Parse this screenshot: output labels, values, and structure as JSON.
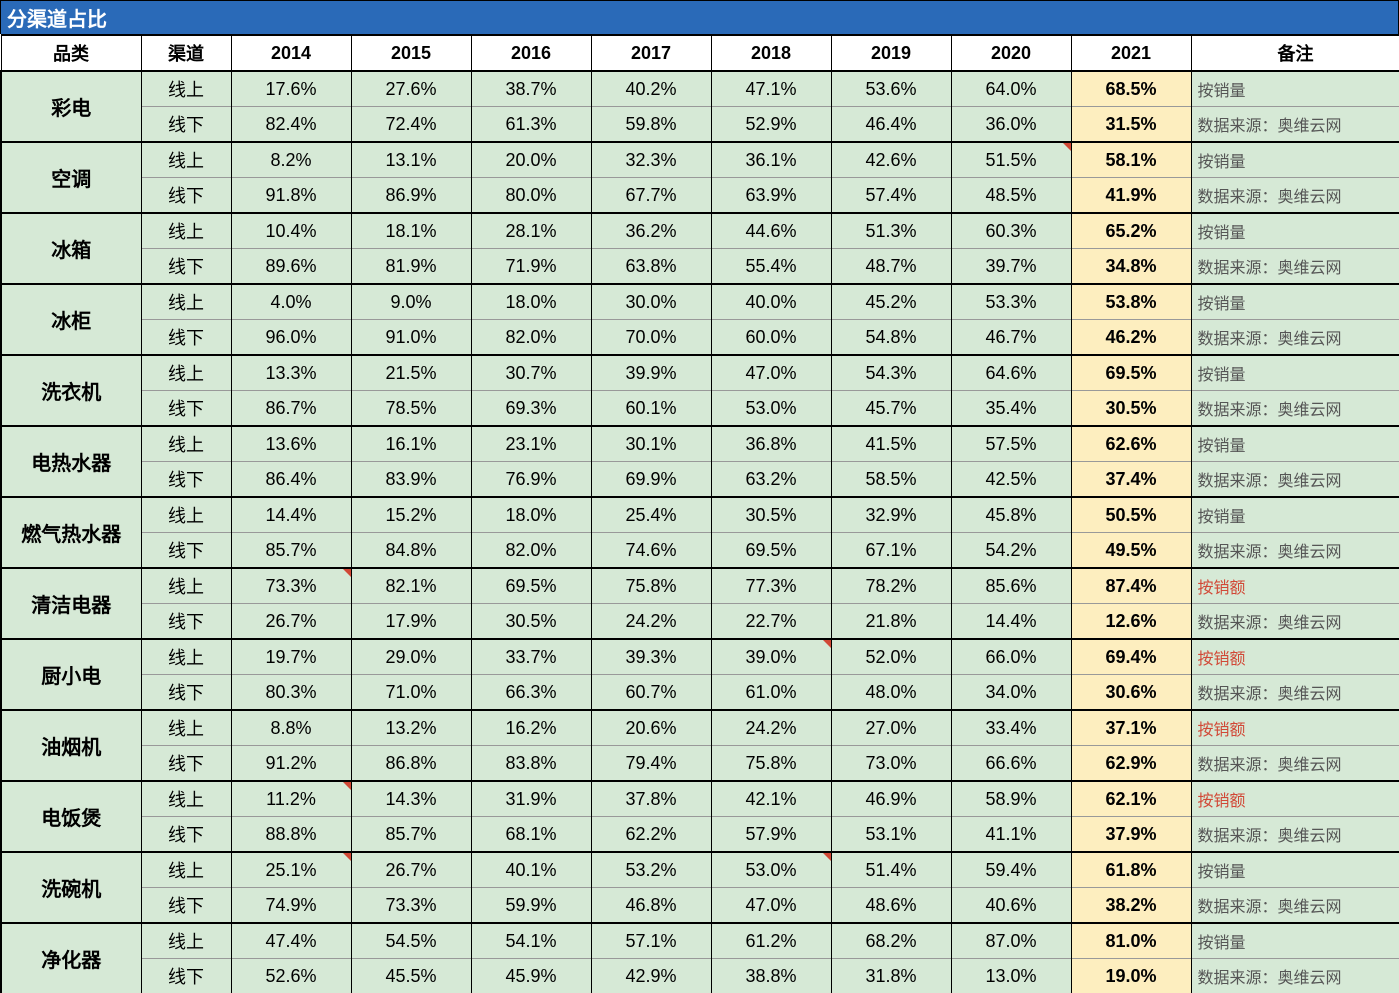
{
  "title": "分渠道占比",
  "years": [
    "2014",
    "2015",
    "2016",
    "2017",
    "2018",
    "2019",
    "2020",
    "2021"
  ],
  "headers": {
    "category": "品类",
    "channel": "渠道",
    "note": "备注"
  },
  "channels": {
    "online": "线上",
    "offline": "线下"
  },
  "note_labels": {
    "vol": "按销量",
    "amt": "按销额",
    "src": "数据来源：奥维云网"
  },
  "highlight_year_index": 7,
  "colors": {
    "title_bg": "#2a6ab8",
    "cell_bg": "#d6e9d6",
    "highlight_bg": "#fdeebf",
    "note_text": "#555555",
    "note_red": "#d14836",
    "flag": "#d14836",
    "border": "#000000",
    "mid_border": "#999999"
  },
  "categories": [
    {
      "name": "彩电",
      "note_type": "vol",
      "online": [
        "17.6%",
        "27.6%",
        "38.7%",
        "40.2%",
        "47.1%",
        "53.6%",
        "64.0%",
        "68.5%"
      ],
      "offline": [
        "82.4%",
        "72.4%",
        "61.3%",
        "59.8%",
        "52.9%",
        "46.4%",
        "36.0%",
        "31.5%"
      ],
      "flags_online": [],
      "flags_offline": []
    },
    {
      "name": "空调",
      "note_type": "vol",
      "online": [
        "8.2%",
        "13.1%",
        "20.0%",
        "32.3%",
        "36.1%",
        "42.6%",
        "51.5%",
        "58.1%"
      ],
      "offline": [
        "91.8%",
        "86.9%",
        "80.0%",
        "67.7%",
        "63.9%",
        "57.4%",
        "48.5%",
        "41.9%"
      ],
      "flags_online": [
        6
      ],
      "flags_offline": []
    },
    {
      "name": "冰箱",
      "note_type": "vol",
      "online": [
        "10.4%",
        "18.1%",
        "28.1%",
        "36.2%",
        "44.6%",
        "51.3%",
        "60.3%",
        "65.2%"
      ],
      "offline": [
        "89.6%",
        "81.9%",
        "71.9%",
        "63.8%",
        "55.4%",
        "48.7%",
        "39.7%",
        "34.8%"
      ],
      "flags_online": [],
      "flags_offline": []
    },
    {
      "name": "冰柜",
      "note_type": "vol",
      "online": [
        "4.0%",
        "9.0%",
        "18.0%",
        "30.0%",
        "40.0%",
        "45.2%",
        "53.3%",
        "53.8%"
      ],
      "offline": [
        "96.0%",
        "91.0%",
        "82.0%",
        "70.0%",
        "60.0%",
        "54.8%",
        "46.7%",
        "46.2%"
      ],
      "flags_online": [],
      "flags_offline": []
    },
    {
      "name": "洗衣机",
      "note_type": "vol",
      "online": [
        "13.3%",
        "21.5%",
        "30.7%",
        "39.9%",
        "47.0%",
        "54.3%",
        "64.6%",
        "69.5%"
      ],
      "offline": [
        "86.7%",
        "78.5%",
        "69.3%",
        "60.1%",
        "53.0%",
        "45.7%",
        "35.4%",
        "30.5%"
      ],
      "flags_online": [],
      "flags_offline": []
    },
    {
      "name": "电热水器",
      "note_type": "vol",
      "online": [
        "13.6%",
        "16.1%",
        "23.1%",
        "30.1%",
        "36.8%",
        "41.5%",
        "57.5%",
        "62.6%"
      ],
      "offline": [
        "86.4%",
        "83.9%",
        "76.9%",
        "69.9%",
        "63.2%",
        "58.5%",
        "42.5%",
        "37.4%"
      ],
      "flags_online": [],
      "flags_offline": []
    },
    {
      "name": "燃气热水器",
      "note_type": "vol",
      "online": [
        "14.4%",
        "15.2%",
        "18.0%",
        "25.4%",
        "30.5%",
        "32.9%",
        "45.8%",
        "50.5%"
      ],
      "offline": [
        "85.7%",
        "84.8%",
        "82.0%",
        "74.6%",
        "69.5%",
        "67.1%",
        "54.2%",
        "49.5%"
      ],
      "flags_online": [],
      "flags_offline": []
    },
    {
      "name": "清洁电器",
      "note_type": "amt",
      "online": [
        "73.3%",
        "82.1%",
        "69.5%",
        "75.8%",
        "77.3%",
        "78.2%",
        "85.6%",
        "87.4%"
      ],
      "offline": [
        "26.7%",
        "17.9%",
        "30.5%",
        "24.2%",
        "22.7%",
        "21.8%",
        "14.4%",
        "12.6%"
      ],
      "flags_online": [
        0
      ],
      "flags_offline": []
    },
    {
      "name": "厨小电",
      "note_type": "amt",
      "online": [
        "19.7%",
        "29.0%",
        "33.7%",
        "39.3%",
        "39.0%",
        "52.0%",
        "66.0%",
        "69.4%"
      ],
      "offline": [
        "80.3%",
        "71.0%",
        "66.3%",
        "60.7%",
        "61.0%",
        "48.0%",
        "34.0%",
        "30.6%"
      ],
      "flags_online": [
        4
      ],
      "flags_offline": []
    },
    {
      "name": "油烟机",
      "note_type": "amt",
      "online": [
        "8.8%",
        "13.2%",
        "16.2%",
        "20.6%",
        "24.2%",
        "27.0%",
        "33.4%",
        "37.1%"
      ],
      "offline": [
        "91.2%",
        "86.8%",
        "83.8%",
        "79.4%",
        "75.8%",
        "73.0%",
        "66.6%",
        "62.9%"
      ],
      "flags_online": [],
      "flags_offline": []
    },
    {
      "name": "电饭煲",
      "note_type": "amt",
      "online": [
        "11.2%",
        "14.3%",
        "31.9%",
        "37.8%",
        "42.1%",
        "46.9%",
        "58.9%",
        "62.1%"
      ],
      "offline": [
        "88.8%",
        "85.7%",
        "68.1%",
        "62.2%",
        "57.9%",
        "53.1%",
        "41.1%",
        "37.9%"
      ],
      "flags_online": [
        0
      ],
      "flags_offline": []
    },
    {
      "name": "洗碗机",
      "note_type": "vol",
      "online": [
        "25.1%",
        "26.7%",
        "40.1%",
        "53.2%",
        "53.0%",
        "51.4%",
        "59.4%",
        "61.8%"
      ],
      "offline": [
        "74.9%",
        "73.3%",
        "59.9%",
        "46.8%",
        "47.0%",
        "48.6%",
        "40.6%",
        "38.2%"
      ],
      "flags_online": [
        0,
        4
      ],
      "flags_offline": []
    },
    {
      "name": "净化器",
      "note_type": "vol",
      "online": [
        "47.4%",
        "54.5%",
        "54.1%",
        "57.1%",
        "61.2%",
        "68.2%",
        "87.0%",
        "81.0%"
      ],
      "offline": [
        "52.6%",
        "45.5%",
        "45.9%",
        "42.9%",
        "38.8%",
        "31.8%",
        "13.0%",
        "19.0%"
      ],
      "flags_online": [],
      "flags_offline": []
    }
  ]
}
